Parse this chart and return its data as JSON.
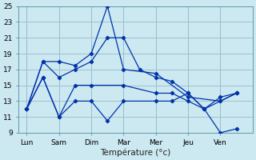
{
  "background_color": "#cce8f0",
  "grid_color": "#99bbcc",
  "line_color": "#0033aa",
  "xlabel": "Température (°c)",
  "ylim": [
    9,
    25
  ],
  "yticks": [
    9,
    11,
    13,
    15,
    17,
    19,
    21,
    23,
    25
  ],
  "days": [
    "Lun",
    "Sam",
    "Dim",
    "Mar",
    "Mer",
    "Jeu",
    "Ven"
  ],
  "day_x": [
    0,
    2,
    4,
    6,
    8,
    10,
    12
  ],
  "xlim": [
    -0.5,
    14
  ],
  "series": [
    {
      "x": [
        0,
        1,
        2,
        3,
        4,
        5,
        6,
        8,
        10,
        12,
        13
      ],
      "y": [
        12,
        18,
        18,
        17.5,
        19,
        25,
        17,
        16.5,
        13.5,
        13,
        14
      ]
    },
    {
      "x": [
        0,
        1,
        2,
        3,
        4,
        5,
        6,
        7,
        8,
        9,
        10,
        11,
        12,
        13
      ],
      "y": [
        12,
        18,
        16,
        17,
        18,
        21,
        21,
        17,
        16,
        15.5,
        14,
        12,
        13.5,
        14
      ]
    },
    {
      "x": [
        0,
        1,
        2,
        3,
        4,
        5,
        6,
        8,
        9,
        10,
        11,
        12,
        13
      ],
      "y": [
        12,
        16,
        11,
        13,
        13,
        10.5,
        13,
        13,
        13,
        14,
        12,
        9,
        9.5
      ]
    },
    {
      "x": [
        0,
        1,
        2,
        3,
        4,
        6,
        8,
        9,
        10,
        11,
        12,
        13
      ],
      "y": [
        12,
        16,
        11,
        15,
        15,
        15,
        14,
        14,
        13,
        12,
        13,
        14
      ]
    }
  ]
}
